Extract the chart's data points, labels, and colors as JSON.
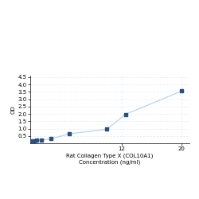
{
  "x": [
    0,
    0.31,
    0.63,
    1.25,
    2.5,
    5,
    10,
    12.5,
    20
  ],
  "y": [
    0.15,
    0.18,
    0.2,
    0.22,
    0.3,
    0.65,
    0.95,
    1.97,
    3.55
  ],
  "line_color": "#b8d4ec",
  "marker_color": "#2d4f7a",
  "marker_style": "s",
  "marker_size": 3,
  "xlabel_line1": "Rat Collagen Type X (COL10A1)",
  "xlabel_line2": "Concentration (ng/ml)",
  "ylabel": "OD",
  "xlim": [
    -0.3,
    21
  ],
  "ylim": [
    0,
    4.6
  ],
  "yticks": [
    0.5,
    1,
    1.5,
    2,
    2.5,
    3,
    3.5,
    4,
    4.5
  ],
  "xticks": [
    12,
    20
  ],
  "grid_color": "#dce6f0",
  "background_color": "#ffffff",
  "label_fontsize": 5,
  "tick_fontsize": 5
}
